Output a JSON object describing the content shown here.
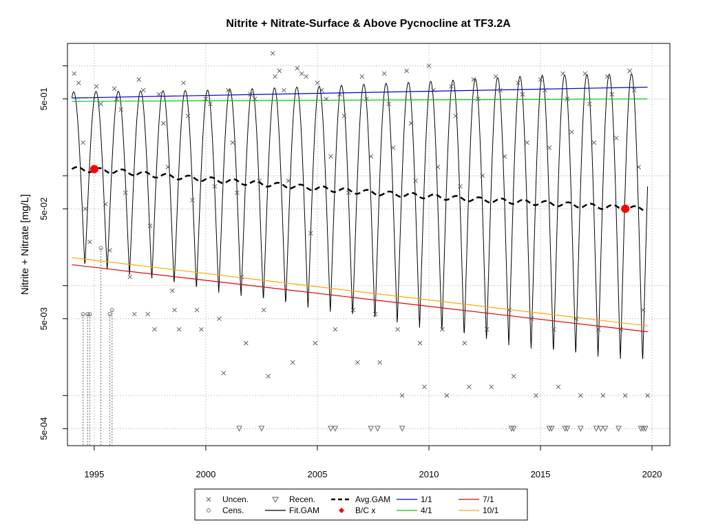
{
  "chart_data": {
    "type": "line",
    "title": "Nitrite + Nitrate-Surface & Above Pycnocline at TF3.2A",
    "xlabel": "",
    "ylabel": "Nitrite + Nitrate [mg/L]",
    "y_scale": "log",
    "xlim": [
      1993.8,
      2020.8
    ],
    "ylim": [
      0.00035,
      1.6
    ],
    "x_ticks": [
      1995,
      2000,
      2005,
      2010,
      2015,
      2020
    ],
    "x_tick_labels": [
      "1995",
      "2000",
      "2005",
      "2010",
      "2015",
      "2020"
    ],
    "y_ticks": [
      0.0005,
      0.005,
      0.05,
      0.5
    ],
    "y_tick_labels": [
      "5e-04",
      "5e-03",
      "5e-02",
      "5e-01"
    ],
    "y_minor_ticks": [
      0.001,
      0.01,
      0.1,
      1.0
    ],
    "grid": true,
    "legend_position": "bottom-center",
    "legend": [
      {
        "label": "Uncen.",
        "symbol": "x"
      },
      {
        "label": "Recen.",
        "symbol": "triangle-down"
      },
      {
        "label": "Avg.GAM",
        "symbol": "dashed-line"
      },
      {
        "label": "1/1",
        "symbol": "line-blue"
      },
      {
        "label": "7/1",
        "symbol": "line-red"
      },
      {
        "label": "Cens.",
        "symbol": "circle"
      },
      {
        "label": "Fit.GAM",
        "symbol": "line-black"
      },
      {
        "label": "B/C x",
        "symbol": "red-diamond"
      },
      {
        "label": "4/1",
        "symbol": "line-green"
      },
      {
        "label": "10/1",
        "symbol": "line-orange"
      }
    ],
    "colors": {
      "fit": "#000000",
      "avg": "#000000",
      "jan": "#0000cd",
      "apr": "#00cd00",
      "jul": "#e00000",
      "oct": "#ffa500",
      "bc_marker": "#ff0000",
      "points": "#555555",
      "grid": "#c8c8c8"
    },
    "series": [
      {
        "name": "1/1",
        "x": [
          1994.0,
          2019.8
        ],
        "y": [
          0.51,
          0.64
        ]
      },
      {
        "name": "4/1",
        "x": [
          1994.0,
          2019.8
        ],
        "y": [
          0.475,
          0.5
        ]
      },
      {
        "name": "7/1",
        "x": [
          1994.0,
          2019.8
        ],
        "y": [
          0.0155,
          0.0038
        ]
      },
      {
        "name": "10/1",
        "x": [
          1994.0,
          2019.8
        ],
        "y": [
          0.018,
          0.0043
        ]
      },
      {
        "name": "Avg.GAM",
        "x": [
          1994.0,
          1996,
          1998,
          2000,
          2002,
          2004,
          2006,
          2008,
          2010,
          2012,
          2014,
          2016,
          2018,
          2019.6
        ],
        "y": [
          0.115,
          0.11,
          0.1,
          0.093,
          0.086,
          0.08,
          0.074,
          0.069,
          0.065,
          0.061,
          0.058,
          0.055,
          0.052,
          0.05
        ]
      },
      {
        "name": "Fit.GAM",
        "description": "seasonal",
        "x_range": [
          1994.0,
          2019.8
        ]
      }
    ],
    "fit_gam": {
      "peak_month_fraction": 0.08,
      "peaks": {
        "x": [
          1994.0,
          2000,
          2005,
          2010,
          2015,
          2019.8
        ],
        "y": [
          0.58,
          0.6,
          0.65,
          0.72,
          0.82,
          0.85
        ]
      },
      "troughs": {
        "x": [
          1994.0,
          2000,
          2005,
          2010,
          2015,
          2019.8
        ],
        "y": [
          0.016,
          0.009,
          0.006,
          0.004,
          0.0025,
          0.002
        ]
      }
    },
    "bc_markers": {
      "x": [
        1995.0,
        2018.8
      ],
      "y": [
        0.115,
        0.05
      ]
    },
    "uncensored": {
      "x": [
        1994.1,
        1994.3,
        1994.5,
        1994.6,
        1994.8,
        1995.1,
        1995.3,
        1995.5,
        1995.7,
        1995.9,
        1996.0,
        1996.2,
        1996.4,
        1996.6,
        1996.8,
        1997.0,
        1997.2,
        1997.4,
        1997.5,
        1997.7,
        1997.9,
        1998.1,
        1998.3,
        1998.5,
        1998.6,
        1998.8,
        1999.0,
        1999.2,
        1999.4,
        1999.6,
        1999.8,
        2000.0,
        2000.2,
        2000.4,
        2000.6,
        2000.8,
        2001.0,
        2001.2,
        2001.4,
        2001.6,
        2001.8,
        2002.0,
        2002.2,
        2002.4,
        2002.6,
        2002.8,
        2003.0,
        2003.1,
        2003.3,
        2003.5,
        2003.7,
        2003.9,
        2004.1,
        2004.3,
        2004.5,
        2004.7,
        2004.9,
        2005.0,
        2005.2,
        2005.4,
        2005.6,
        2005.8,
        2006.0,
        2006.2,
        2006.4,
        2006.6,
        2006.8,
        2007.0,
        2007.2,
        2007.4,
        2007.6,
        2007.8,
        2008.0,
        2008.2,
        2008.4,
        2008.6,
        2008.8,
        2009.0,
        2009.2,
        2009.4,
        2009.6,
        2009.8,
        2010.0,
        2010.2,
        2010.4,
        2010.6,
        2010.8,
        2011.0,
        2011.2,
        2011.4,
        2011.6,
        2011.8,
        2012.0,
        2012.2,
        2012.4,
        2012.6,
        2012.8,
        2013.0,
        2013.2,
        2013.4,
        2013.6,
        2013.8,
        2014.0,
        2014.2,
        2014.4,
        2014.6,
        2014.8,
        2015.0,
        2015.2,
        2015.4,
        2015.6,
        2015.8,
        2016.0,
        2016.2,
        2016.4,
        2016.6,
        2016.8,
        2017.0,
        2017.2,
        2017.4,
        2017.6,
        2017.8,
        2018.0,
        2018.2,
        2018.4,
        2018.6,
        2018.8,
        2019.0,
        2019.2,
        2019.4,
        2019.6,
        2019.8
      ],
      "y": [
        0.85,
        0.7,
        0.2,
        0.05,
        0.025,
        0.65,
        0.45,
        0.055,
        0.021,
        0.62,
        0.5,
        0.4,
        0.07,
        0.012,
        0.0055,
        0.75,
        0.6,
        0.0055,
        0.035,
        0.004,
        0.55,
        0.3,
        0.12,
        0.009,
        0.006,
        0.004,
        0.7,
        0.35,
        0.06,
        0.006,
        0.004,
        0.5,
        0.45,
        0.08,
        0.005,
        0.0016,
        0.6,
        0.2,
        0.07,
        0.012,
        0.003,
        0.55,
        0.5,
        0.09,
        0.006,
        0.0015,
        1.3,
        0.8,
        0.9,
        0.6,
        0.09,
        0.002,
        0.95,
        0.85,
        0.8,
        0.03,
        0.003,
        0.7,
        0.6,
        0.5,
        0.15,
        0.004,
        0.55,
        0.35,
        0.07,
        0.006,
        0.002,
        0.8,
        0.5,
        0.15,
        0.0055,
        0.002,
        0.85,
        0.45,
        0.18,
        0.004,
        0.001,
        0.9,
        0.3,
        0.09,
        0.003,
        0.0012,
        1.0,
        0.6,
        0.12,
        0.004,
        0.001,
        0.65,
        0.35,
        0.08,
        0.003,
        0.0012,
        0.75,
        0.5,
        0.1,
        0.004,
        0.0012,
        0.8,
        0.6,
        0.15,
        0.006,
        0.0015,
        0.7,
        0.55,
        0.2,
        0.005,
        0.001,
        0.75,
        0.6,
        0.18,
        0.004,
        0.0012,
        0.85,
        0.5,
        0.25,
        0.005,
        0.001,
        0.85,
        0.45,
        0.2,
        0.004,
        0.001,
        0.8,
        0.55,
        0.22,
        0.004,
        0.001,
        0.9,
        0.6,
        0.12,
        0.006,
        0.001
      ]
    },
    "censored": {
      "x": [
        1994.5,
        1994.7,
        1994.8,
        1995.3,
        1995.7,
        1995.8
      ],
      "y": [
        0.0055,
        0.0055,
        0.0055,
        0.022,
        0.0055,
        0.006
      ]
    },
    "recensored": {
      "x": [
        2001.5,
        2002.5,
        2005.6,
        2005.8,
        2007.4,
        2007.7,
        2008.8,
        2013.7,
        2013.8,
        2015.4,
        2015.5,
        2016.1,
        2016.2,
        2016.8,
        2017.5,
        2017.7,
        2017.9,
        2018.5,
        2019.5,
        2019.6,
        2019.7
      ],
      "y": [
        0.0005,
        0.0005,
        0.0005,
        0.0005,
        0.0005,
        0.0005,
        0.0005,
        0.0005,
        0.0005,
        0.0005,
        0.0005,
        0.0005,
        0.0005,
        0.0005,
        0.0005,
        0.0005,
        0.0005,
        0.0005,
        0.0005,
        0.0005,
        0.0005
      ]
    }
  }
}
